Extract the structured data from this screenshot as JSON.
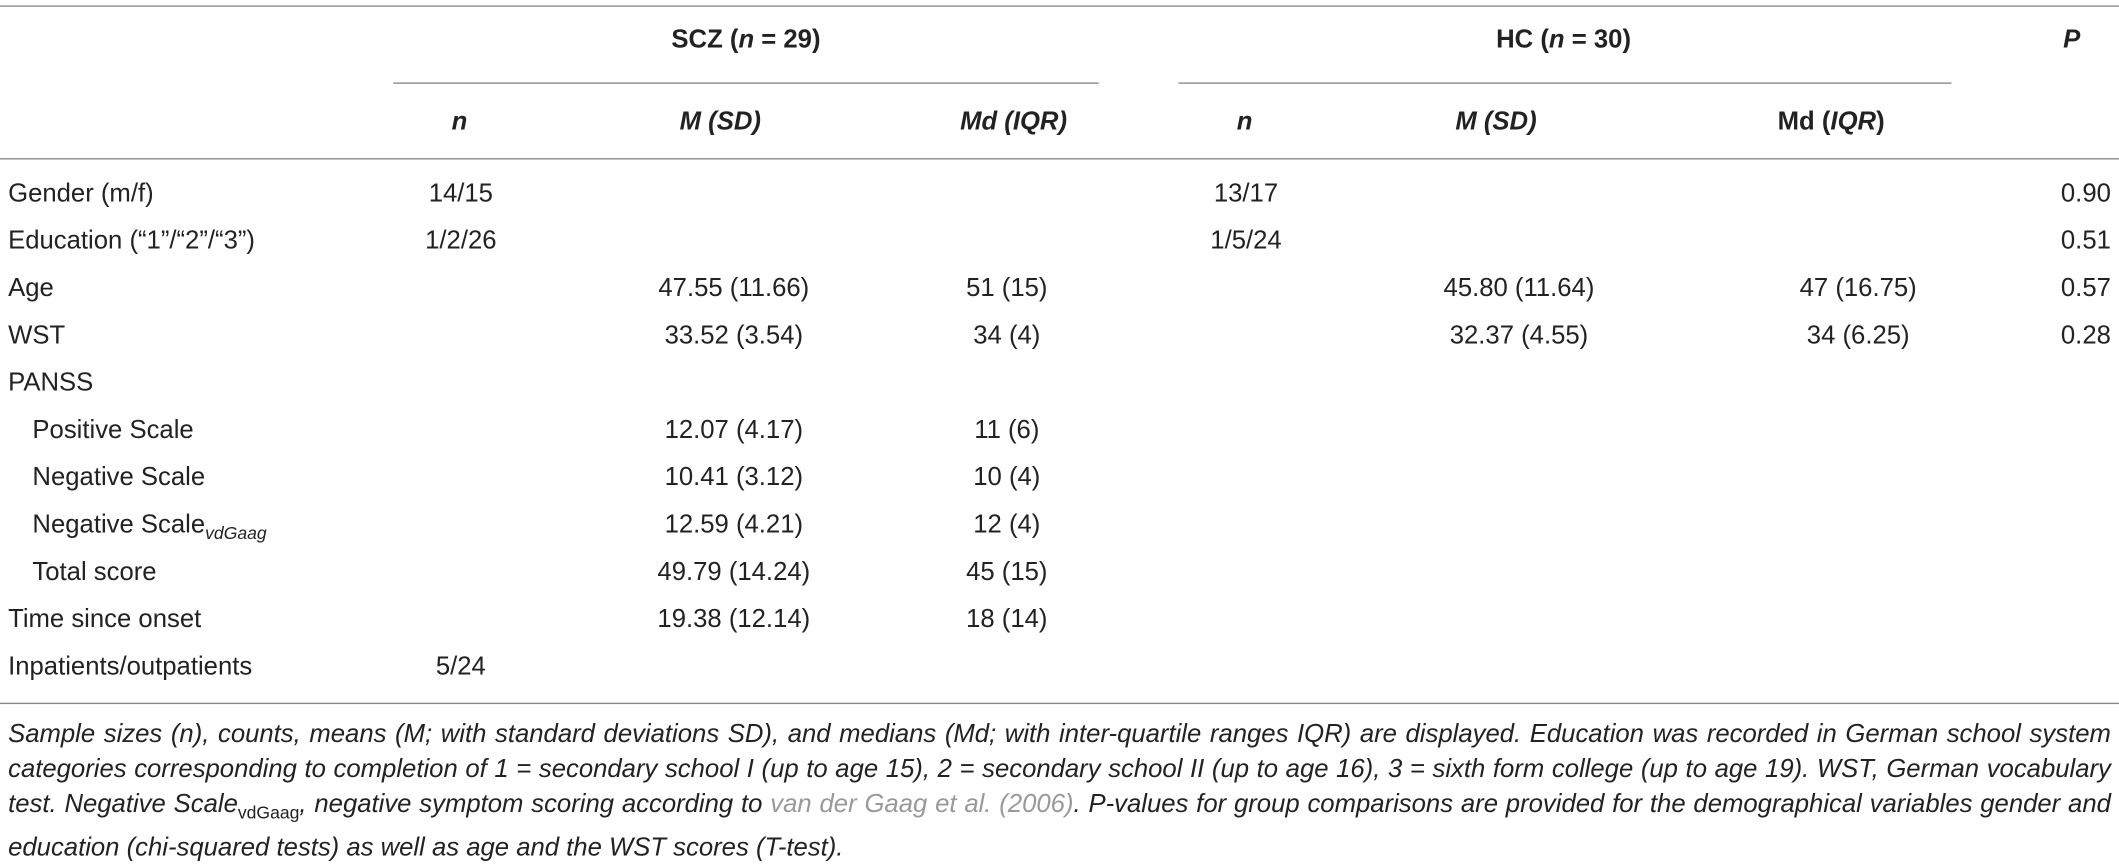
{
  "table": {
    "groups": [
      {
        "parts": [
          {
            "text": "SCZ ("
          },
          {
            "text": "n",
            "italic": true
          },
          {
            "text": " = 29)"
          }
        ]
      },
      {
        "parts": [
          {
            "text": "HC ("
          },
          {
            "text": "n",
            "italic": true
          },
          {
            "text": " = 30)"
          }
        ]
      },
      {
        "parts": [
          {
            "text": "P",
            "italic": true
          }
        ]
      }
    ],
    "subheaders": [
      {
        "parts": [
          {
            "text": "n",
            "italic": true
          }
        ]
      },
      {
        "parts": [
          {
            "text": "M (SD)",
            "italic": true
          }
        ]
      },
      {
        "parts": [
          {
            "text": "Md (IQR)",
            "italic": true
          }
        ]
      },
      {
        "parts": [
          {
            "text": "n",
            "italic": true
          }
        ]
      },
      {
        "parts": [
          {
            "text": "M (SD)",
            "italic": true
          }
        ]
      },
      {
        "parts": [
          {
            "text": "Md ("
          },
          {
            "text": "IQR",
            "italic": true
          },
          {
            "text": ")"
          }
        ]
      }
    ],
    "rows": [
      {
        "label": "Gender (m/f)",
        "cells": [
          "14/15",
          null,
          null,
          "13/17",
          null,
          null,
          "0.90"
        ]
      },
      {
        "label": "Education (“1”/“2”/“3”)",
        "cells": [
          "1/2/26",
          null,
          null,
          "1/5/24",
          null,
          null,
          "0.51"
        ]
      },
      {
        "label": "Age",
        "cells": [
          null,
          "47.55 (11.66)",
          "51 (15)",
          null,
          "45.80 (11.64)",
          "47 (16.75)",
          "0.57"
        ]
      },
      {
        "label": "WST",
        "cells": [
          null,
          "33.52 (3.54)",
          "34 (4)",
          null,
          "32.37 (4.55)",
          "34 (6.25)",
          "0.28"
        ]
      },
      {
        "label": "PANSS",
        "cells": [
          null,
          null,
          null,
          null,
          null,
          null,
          null
        ]
      },
      {
        "label": "Positive Scale",
        "indent": true,
        "cells": [
          null,
          "12.07 (4.17)",
          "11 (6)",
          null,
          null,
          null,
          null
        ]
      },
      {
        "label": "Negative Scale",
        "indent": true,
        "cells": [
          null,
          "10.41 (3.12)",
          "10 (4)",
          null,
          null,
          null,
          null
        ]
      },
      {
        "label": "Negative Scale",
        "sub": "vdGaag",
        "indent": true,
        "cells": [
          null,
          "12.59 (4.21)",
          "12 (4)",
          null,
          null,
          null,
          null
        ]
      },
      {
        "label": "Total score",
        "indent": true,
        "cells": [
          null,
          "49.79 (14.24)",
          "45 (15)",
          null,
          null,
          null,
          null
        ]
      },
      {
        "label": "Time since onset",
        "cells": [
          null,
          "19.38 (12.14)",
          "18 (14)",
          null,
          null,
          null,
          null
        ]
      },
      {
        "label": "Inpatients/outpatients",
        "cells": [
          "5/24",
          null,
          null,
          null,
          null,
          null,
          null
        ]
      }
    ]
  },
  "footnote": [
    {
      "text": "Sample sizes (n), counts, means (M; with standard deviations SD), and medians (Md; with inter-quartile ranges IQR) are displayed. Education was recorded in German school system categories corresponding to completion of 1 = secondary school I (up to age 15), 2 = secondary school II (up to age 16), 3 = sixth form college (up to age 19). WST, German vocabulary test. Negative Scale"
    },
    {
      "text": "vdGaag",
      "style": "sub"
    },
    {
      "text": ", negative symptom scoring according to "
    },
    {
      "text": "van der Gaag et al. (2006)",
      "style": "link"
    },
    {
      "text": ". P-values for group comparisons are provided for the demographical variables gender and education (chi-squared tests) as well as age and the WST scores (T-test)."
    }
  ]
}
